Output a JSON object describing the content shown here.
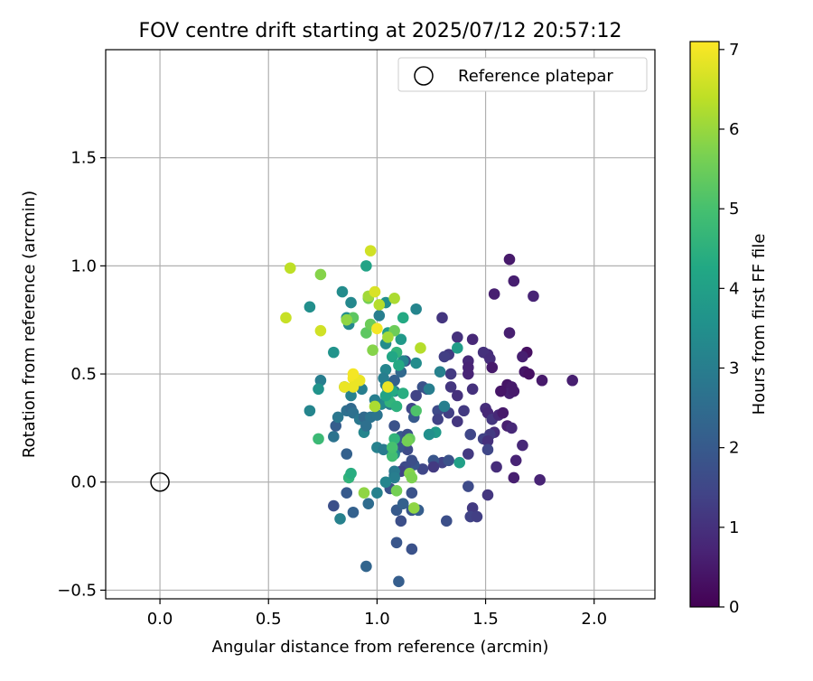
{
  "chart_data": {
    "type": "scatter",
    "title": "FOV centre drift starting at 2025/07/12 20:57:12",
    "xlabel": "Angular distance from reference (arcmin)",
    "ylabel": "Rotation from reference (arcmin)",
    "xlim": [
      -0.25,
      2.28
    ],
    "ylim": [
      -0.54,
      2.0
    ],
    "xticks": [
      "0.0",
      "0.5",
      "1.0",
      "1.5",
      "2.0"
    ],
    "yticks": [
      "−0.5",
      "0.0",
      "0.5",
      "1.0",
      "1.5"
    ],
    "grid": true,
    "legend": {
      "placement": "top-right",
      "entries": [
        "Reference platepar"
      ]
    },
    "reference_point": {
      "x": 0.0,
      "y": 0.0
    },
    "colorbar": {
      "label": "Hours from first FF file",
      "colormap": "viridis",
      "range": [
        0,
        7.1
      ],
      "ticks": [
        "0",
        "1",
        "2",
        "3",
        "4",
        "5",
        "6",
        "7"
      ]
    },
    "points": [
      [
        1.61,
        1.03,
        0.5
      ],
      [
        1.63,
        0.93,
        0.6
      ],
      [
        1.72,
        0.86,
        0.7
      ],
      [
        1.54,
        0.87,
        0.6
      ],
      [
        1.61,
        0.69,
        0.6
      ],
      [
        1.3,
        0.76,
        1.1
      ],
      [
        1.44,
        0.66,
        0.8
      ],
      [
        1.37,
        0.67,
        1.0
      ],
      [
        1.33,
        0.59,
        1.2
      ],
      [
        1.31,
        0.58,
        1.3
      ],
      [
        1.69,
        0.6,
        0.3
      ],
      [
        1.67,
        0.58,
        0.6
      ],
      [
        1.51,
        0.59,
        0.9
      ],
      [
        1.49,
        0.6,
        1.0
      ],
      [
        1.52,
        0.57,
        0.9
      ],
      [
        1.42,
        0.56,
        0.8
      ],
      [
        1.42,
        0.53,
        0.7
      ],
      [
        1.42,
        0.5,
        0.7
      ],
      [
        1.53,
        0.53,
        0.5
      ],
      [
        1.68,
        0.51,
        0.4
      ],
      [
        1.7,
        0.5,
        0.3
      ],
      [
        1.76,
        0.47,
        0.5
      ],
      [
        1.9,
        0.47,
        0.6
      ],
      [
        1.6,
        0.45,
        0.4
      ],
      [
        1.62,
        0.44,
        0.5
      ],
      [
        1.61,
        0.41,
        0.6
      ],
      [
        1.63,
        0.42,
        0.5
      ],
      [
        1.57,
        0.42,
        0.4
      ],
      [
        1.44,
        0.43,
        1.0
      ],
      [
        1.34,
        0.44,
        1.1
      ],
      [
        1.34,
        0.5,
        1.2
      ],
      [
        1.37,
        0.4,
        1.0
      ],
      [
        1.4,
        0.33,
        1.2
      ],
      [
        1.5,
        0.34,
        0.9
      ],
      [
        1.51,
        0.32,
        0.8
      ],
      [
        1.53,
        0.29,
        1.1
      ],
      [
        1.56,
        0.31,
        0.8
      ],
      [
        1.58,
        0.32,
        0.5
      ],
      [
        1.6,
        0.26,
        0.6
      ],
      [
        1.62,
        0.25,
        0.8
      ],
      [
        1.54,
        0.23,
        0.9
      ],
      [
        1.52,
        0.22,
        1.2
      ],
      [
        1.43,
        0.22,
        1.5
      ],
      [
        1.49,
        0.2,
        1.4
      ],
      [
        1.51,
        0.19,
        1.0
      ],
      [
        1.67,
        0.17,
        0.8
      ],
      [
        1.42,
        0.13,
        1.2
      ],
      [
        1.51,
        0.15,
        1.5
      ],
      [
        1.55,
        0.07,
        0.9
      ],
      [
        1.64,
        0.1,
        0.7
      ],
      [
        1.63,
        0.02,
        0.6
      ],
      [
        1.75,
        0.01,
        0.7
      ],
      [
        1.42,
        -0.02,
        1.6
      ],
      [
        1.51,
        -0.06,
        1.1
      ],
      [
        1.44,
        -0.12,
        1.2
      ],
      [
        1.43,
        -0.16,
        1.4
      ],
      [
        1.46,
        -0.16,
        1.3
      ],
      [
        1.32,
        -0.18,
        1.7
      ],
      [
        1.3,
        0.09,
        1.4
      ],
      [
        1.33,
        0.1,
        1.8
      ],
      [
        1.37,
        0.28,
        1.1
      ],
      [
        1.33,
        0.32,
        1.3
      ],
      [
        1.28,
        0.33,
        1.6
      ],
      [
        1.28,
        0.29,
        1.4
      ],
      [
        1.23,
        0.43,
        1.6
      ],
      [
        1.21,
        0.44,
        1.8
      ],
      [
        1.26,
        0.1,
        1.9
      ],
      [
        1.26,
        0.07,
        1.2
      ],
      [
        1.21,
        0.06,
        1.5
      ],
      [
        1.17,
        0.08,
        1.9
      ],
      [
        1.16,
        0.1,
        1.7
      ],
      [
        1.14,
        0.15,
        1.6
      ],
      [
        1.1,
        0.16,
        1.9
      ],
      [
        1.11,
        0.21,
        2.0
      ],
      [
        1.14,
        0.22,
        1.7
      ],
      [
        1.08,
        0.26,
        1.8
      ],
      [
        1.17,
        0.3,
        2.0
      ],
      [
        1.16,
        0.34,
        1.5
      ],
      [
        1.18,
        0.4,
        1.4
      ],
      [
        1.13,
        0.56,
        1.7
      ],
      [
        1.08,
        0.47,
        2.2
      ],
      [
        1.11,
        0.51,
        2.4
      ],
      [
        1.13,
        0.07,
        1.6
      ],
      [
        1.11,
        0.05,
        1.4
      ],
      [
        1.08,
        0.03,
        2.3
      ],
      [
        1.06,
        -0.03,
        1.8
      ],
      [
        1.09,
        -0.13,
        2.0
      ],
      [
        1.12,
        -0.1,
        2.2
      ],
      [
        1.16,
        -0.05,
        1.8
      ],
      [
        1.16,
        -0.13,
        1.9
      ],
      [
        1.19,
        -0.13,
        2.1
      ],
      [
        1.11,
        -0.18,
        1.7
      ],
      [
        1.09,
        -0.28,
        1.9
      ],
      [
        1.16,
        -0.31,
        1.8
      ],
      [
        1.1,
        -0.46,
        2.1
      ],
      [
        0.95,
        -0.39,
        2.3
      ],
      [
        0.96,
        -0.1,
        2.5
      ],
      [
        0.89,
        -0.14,
        2.2
      ],
      [
        0.86,
        -0.05,
        2.0
      ],
      [
        0.8,
        -0.11,
        1.7
      ],
      [
        0.83,
        -0.17,
        3.1
      ],
      [
        0.86,
        0.13,
        2.2
      ],
      [
        0.8,
        0.21,
        2.7
      ],
      [
        0.81,
        0.26,
        2.1
      ],
      [
        0.82,
        0.3,
        2.8
      ],
      [
        0.86,
        0.33,
        2.6
      ],
      [
        0.88,
        0.34,
        2.4
      ],
      [
        0.89,
        0.32,
        2.6
      ],
      [
        0.92,
        0.29,
        2.8
      ],
      [
        0.94,
        0.3,
        2.4
      ],
      [
        0.97,
        0.3,
        2.7
      ],
      [
        0.94,
        0.23,
        3.2
      ],
      [
        0.95,
        0.26,
        2.6
      ],
      [
        0.93,
        0.43,
        3.0
      ],
      [
        0.88,
        0.4,
        3.1
      ],
      [
        0.85,
        0.44,
        2.9
      ],
      [
        0.74,
        0.47,
        3.0
      ],
      [
        0.73,
        0.43,
        3.6
      ],
      [
        0.69,
        0.33,
        3.2
      ],
      [
        0.69,
        0.81,
        3.5
      ],
      [
        0.8,
        0.6,
        3.6
      ],
      [
        0.84,
        0.88,
        3.4
      ],
      [
        0.86,
        0.76,
        3.5
      ],
      [
        0.87,
        0.73,
        3.3
      ],
      [
        0.87,
        0.75,
        3.1
      ],
      [
        0.88,
        0.83,
        3.3
      ],
      [
        0.95,
        1.0,
        4.1
      ],
      [
        1.01,
        0.77,
        3.0
      ],
      [
        1.04,
        0.83,
        3.5
      ],
      [
        1.05,
        0.69,
        3.9
      ],
      [
        1.04,
        0.64,
        3.4
      ],
      [
        1.04,
        0.52,
        3.2
      ],
      [
        1.03,
        0.48,
        3.0
      ],
      [
        1.04,
        0.45,
        3.1
      ],
      [
        1.05,
        0.43,
        3.4
      ],
      [
        1.08,
        0.42,
        2.8
      ],
      [
        1.05,
        0.38,
        2.9
      ],
      [
        1.06,
        0.36,
        2.8
      ],
      [
        1.02,
        0.36,
        3.3
      ],
      [
        0.99,
        0.38,
        3.0
      ],
      [
        1.0,
        0.31,
        2.7
      ],
      [
        1.0,
        0.16,
        3.1
      ],
      [
        1.03,
        0.15,
        2.9
      ],
      [
        1.08,
        0.13,
        3.3
      ],
      [
        1.08,
        0.05,
        2.9
      ],
      [
        1.08,
        0.02,
        3.0
      ],
      [
        1.04,
        0.0,
        3.2
      ],
      [
        1.0,
        -0.05,
        3.1
      ],
      [
        1.12,
        0.56,
        3.2
      ],
      [
        1.11,
        0.66,
        3.8
      ],
      [
        1.12,
        0.76,
        4.3
      ],
      [
        1.18,
        0.8,
        3.2
      ],
      [
        1.18,
        0.55,
        3.4
      ],
      [
        1.24,
        0.43,
        3.0
      ],
      [
        1.29,
        0.51,
        3.1
      ],
      [
        1.31,
        0.35,
        3.0
      ],
      [
        1.27,
        0.23,
        3.8
      ],
      [
        1.24,
        0.22,
        3.5
      ],
      [
        1.37,
        0.62,
        3.9
      ],
      [
        1.38,
        0.09,
        4.0
      ],
      [
        1.12,
        0.41,
        4.4
      ],
      [
        1.1,
        0.54,
        4.3
      ],
      [
        1.09,
        0.6,
        4.6
      ],
      [
        1.07,
        0.58,
        4.2
      ],
      [
        1.07,
        0.42,
        4.3
      ],
      [
        1.06,
        0.37,
        4.6
      ],
      [
        1.04,
        0.4,
        4.1
      ],
      [
        1.09,
        0.35,
        4.5
      ],
      [
        1.08,
        0.2,
        4.6
      ],
      [
        1.07,
        0.12,
        4.9
      ],
      [
        1.07,
        0.16,
        5.0
      ],
      [
        1.15,
        0.2,
        5.4
      ],
      [
        1.14,
        0.19,
        5.6
      ],
      [
        1.18,
        0.33,
        5.1
      ],
      [
        1.15,
        0.04,
        5.8
      ],
      [
        1.16,
        0.02,
        5.7
      ],
      [
        1.17,
        -0.12,
        5.9
      ],
      [
        1.09,
        -0.04,
        5.6
      ],
      [
        0.94,
        -0.05,
        5.9
      ],
      [
        0.87,
        0.02,
        4.6
      ],
      [
        0.88,
        0.04,
        4.4
      ],
      [
        0.73,
        0.2,
        4.8
      ],
      [
        0.89,
        0.76,
        5.3
      ],
      [
        0.86,
        0.75,
        5.9
      ],
      [
        0.74,
        0.96,
        5.8
      ],
      [
        0.96,
        0.85,
        5.6
      ],
      [
        0.96,
        0.86,
        6.1
      ],
      [
        1.01,
        0.82,
        6.3
      ],
      [
        1.08,
        0.85,
        6.2
      ],
      [
        0.95,
        0.69,
        5.3
      ],
      [
        0.97,
        0.73,
        5.5
      ],
      [
        1.08,
        0.7,
        5.5
      ],
      [
        1.05,
        0.67,
        6.1
      ],
      [
        0.98,
        0.61,
        5.8
      ],
      [
        1.2,
        0.62,
        6.3
      ],
      [
        0.99,
        0.35,
        6.2
      ],
      [
        0.6,
        0.99,
        6.4
      ],
      [
        0.58,
        0.76,
        6.5
      ],
      [
        0.74,
        0.7,
        6.6
      ],
      [
        0.97,
        1.07,
        6.6
      ],
      [
        0.99,
        0.88,
        6.7
      ],
      [
        0.91,
        0.47,
        6.8
      ],
      [
        0.89,
        0.48,
        7.0
      ],
      [
        0.92,
        0.47,
        6.9
      ],
      [
        0.89,
        0.5,
        7.0
      ],
      [
        1.05,
        0.44,
        6.9
      ],
      [
        1.0,
        0.71,
        7.0
      ],
      [
        0.85,
        0.44,
        6.9
      ],
      [
        0.89,
        0.44,
        6.9
      ]
    ]
  }
}
